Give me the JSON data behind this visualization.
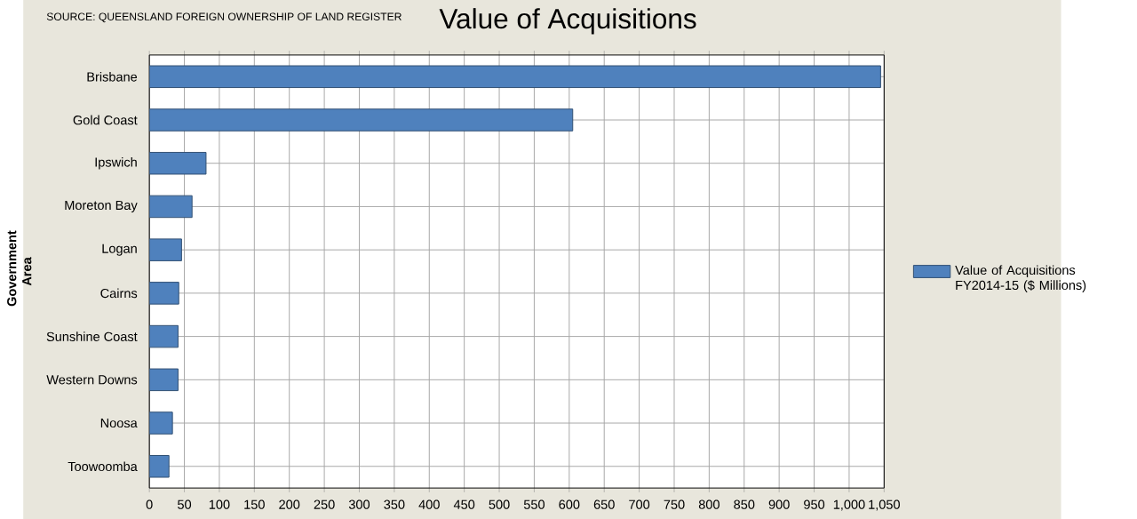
{
  "chart_data": {
    "type": "bar",
    "orientation": "horizontal",
    "title": "Value of Acquisitions",
    "annotations": [
      "SOURCE: QUEENSLAND FOREIGN OWNERSHIP OF LAND REGISTER"
    ],
    "ylabel": "Government Area",
    "categories": [
      "Brisbane",
      "Gold Coast",
      "Ipswich",
      "Moreton Bay",
      "Logan",
      "Cairns",
      "Sunshine Coast",
      "Western Downs",
      "Noosa",
      "Toowoomba"
    ],
    "series": [
      {
        "name": "Value of Acquisitions FY2014-15 ($ Millions)",
        "color": "#4f81bd",
        "values": [
          1045,
          605,
          81,
          61,
          46,
          42,
          41,
          41,
          33,
          28
        ]
      }
    ],
    "xlim": [
      0,
      1050
    ],
    "xticks": [
      0,
      50,
      100,
      150,
      200,
      250,
      300,
      350,
      400,
      450,
      500,
      550,
      600,
      650,
      700,
      750,
      800,
      850,
      900,
      950,
      {
        "value": 1000,
        "label": "1,000"
      },
      {
        "value": 1050,
        "label": "1,050"
      }
    ],
    "grid": true,
    "legend": "right"
  }
}
